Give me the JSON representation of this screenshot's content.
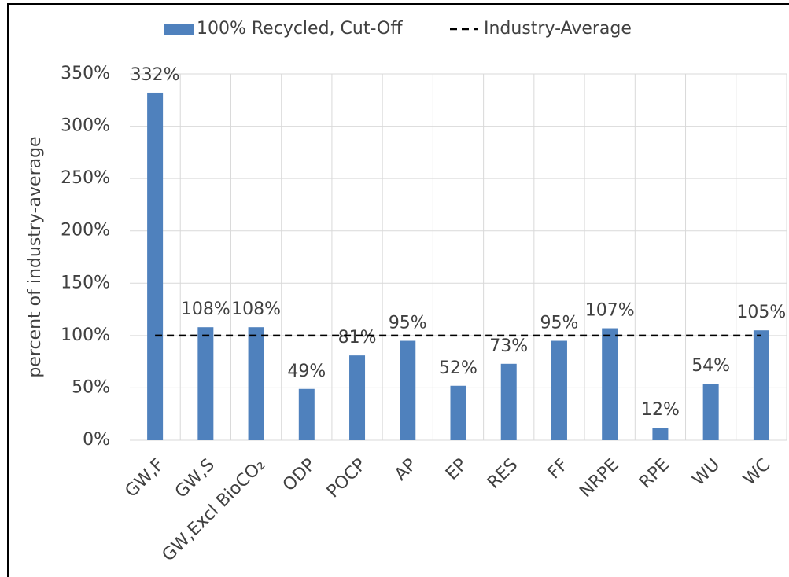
{
  "chart_data": {
    "type": "bar",
    "y_label": "percent of industry-average",
    "categories": [
      "GW,F",
      "GW,S",
      "GW,Excl BioCO₂",
      "ODP",
      "POCP",
      "AP",
      "EP",
      "RES",
      "FF",
      "NRPE",
      "RPE",
      "WU",
      "WC"
    ],
    "series": [
      {
        "name": "100% Recycled, Cut-Off",
        "color": "#4f81bd",
        "type": "bar",
        "values": [
          332,
          108,
          108,
          49,
          81,
          95,
          52,
          73,
          95,
          107,
          12,
          54,
          105
        ],
        "value_labels": [
          "332%",
          "108%",
          "108%",
          "49%",
          "81%",
          "95%",
          "52%",
          "73%",
          "95%",
          "107%",
          "12%",
          "54%",
          "105%"
        ]
      },
      {
        "name": "Industry-Average",
        "color": "#000000",
        "type": "line",
        "dashed": true,
        "values": [
          100,
          100,
          100,
          100,
          100,
          100,
          100,
          100,
          100,
          100,
          100,
          100,
          100
        ]
      }
    ],
    "ylim": [
      0,
      350
    ],
    "yticks": [
      {
        "value": 0,
        "label": "0%"
      },
      {
        "value": 50,
        "label": "50%"
      },
      {
        "value": 100,
        "label": "100%"
      },
      {
        "value": 150,
        "label": "150%"
      },
      {
        "value": 200,
        "label": "200%"
      },
      {
        "value": 250,
        "label": "250%"
      },
      {
        "value": 300,
        "label": "300%"
      },
      {
        "value": 350,
        "label": "350%"
      }
    ],
    "grid": true
  }
}
